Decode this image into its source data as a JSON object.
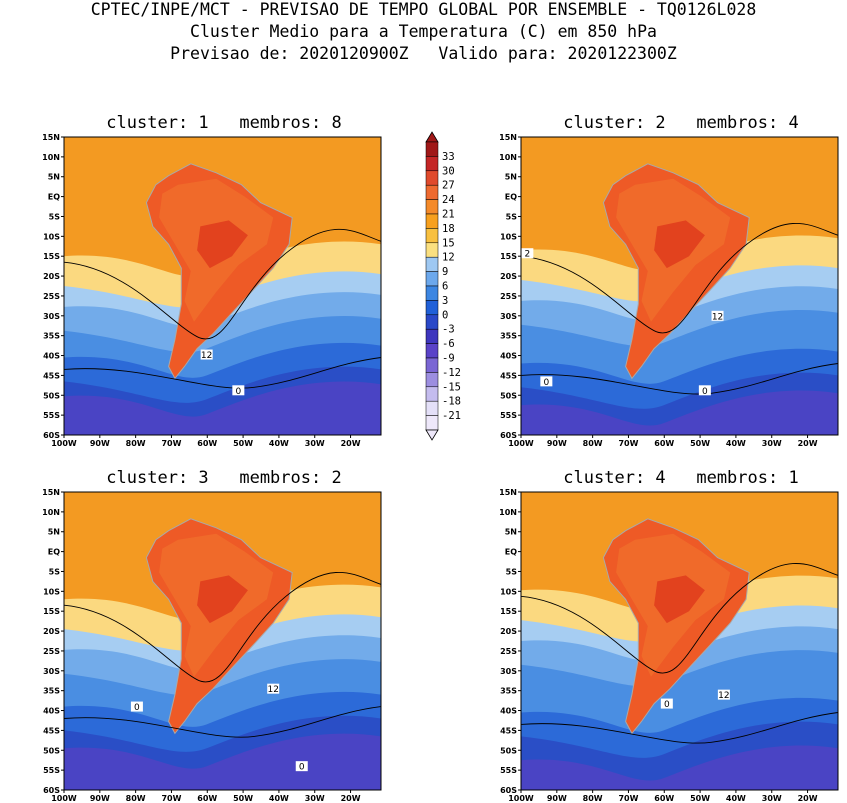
{
  "header": {
    "line1": "CPTEC/INPE/MCT - PREVISAO DE TEMPO GLOBAL POR ENSEMBLE - TQ0126L028",
    "line2": "Cluster Medio para a Temperatura (C) em 850 hPa",
    "line3": "Previsao de: 2020120900Z   Valido para: 2020122300Z"
  },
  "panels": [
    {
      "title": "cluster: 1   membros: 8",
      "contour_labels": [
        "12",
        "0"
      ]
    },
    {
      "title": "cluster: 2   membros: 4",
      "contour_labels": [
        "2",
        "12",
        "0",
        "0"
      ]
    },
    {
      "title": "cluster: 3   membros: 2",
      "contour_labels": [
        "12",
        "0",
        "0"
      ]
    },
    {
      "title": "cluster: 4   membros: 1",
      "contour_labels": [
        "12",
        "0"
      ]
    }
  ],
  "axes": {
    "lat_ticks": [
      "15N",
      "10N",
      "5N",
      "EQ",
      "5S",
      "10S",
      "15S",
      "20S",
      "25S",
      "30S",
      "35S",
      "40S",
      "45S",
      "50S",
      "55S",
      "60S"
    ],
    "lon_ticks": [
      "100W",
      "90W",
      "80W",
      "70W",
      "60W",
      "50W",
      "40W",
      "30W",
      "20W"
    ]
  },
  "colorbar": {
    "labels": [
      "33",
      "30",
      "27",
      "24",
      "21",
      "18",
      "15",
      "12",
      "9",
      "6",
      "3",
      "0",
      "-3",
      "-6",
      "-9",
      "-12",
      "-15",
      "-18",
      "-21"
    ],
    "colors": [
      "#a01818",
      "#c42626",
      "#e04a2c",
      "#ee6a30",
      "#f48a2a",
      "#f7a01e",
      "#f8c040",
      "#fbe080",
      "#9ec8f2",
      "#6ca8ec",
      "#3c86e2",
      "#2060d8",
      "#2a48c8",
      "#3e36be",
      "#5a42c8",
      "#7a66d4",
      "#9c8ee0",
      "#c4bcee",
      "#e4e0f8",
      "#eee8fa"
    ]
  }
}
